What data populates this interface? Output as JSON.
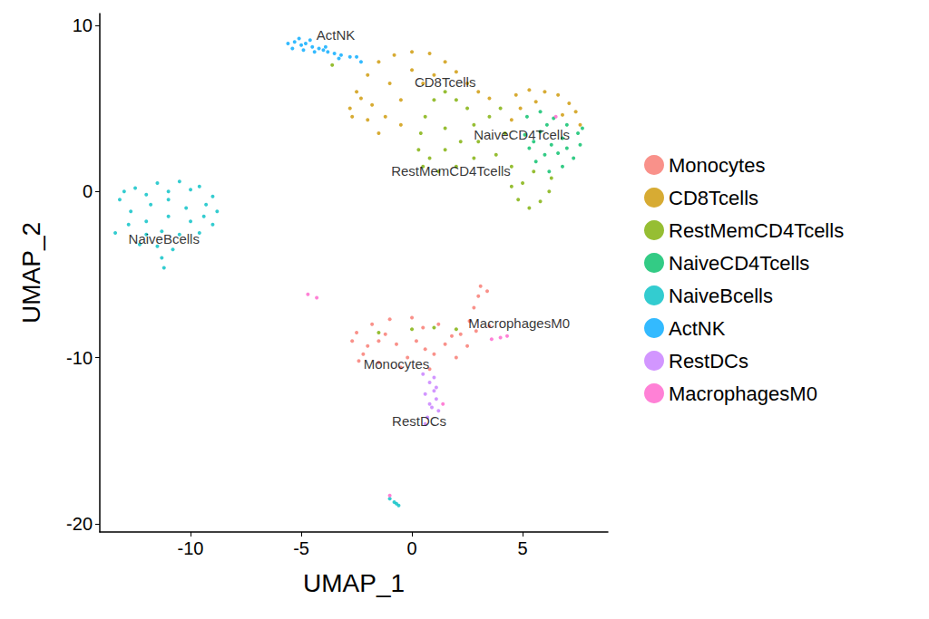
{
  "chart_data": {
    "type": "scatter",
    "x_label": "UMAP_1",
    "y_label": "UMAP_2",
    "xlim": [
      -14.1,
      8.85
    ],
    "ylim": [
      -20.5,
      10.7
    ],
    "xticks": [
      -10,
      -5,
      0,
      5
    ],
    "yticks": [
      -20,
      -10,
      0,
      10
    ],
    "grid": false,
    "legend": "right",
    "marker": "circle",
    "series": [
      {
        "name": "Monocytes",
        "color": "#F8766D",
        "values": [
          [
            -2.7,
            -9
          ],
          [
            -2.5,
            -8.5
          ],
          [
            -2.2,
            -9.8
          ],
          [
            -1.8,
            -8
          ],
          [
            -1.5,
            -10.3
          ],
          [
            -1,
            -7.7
          ],
          [
            -0.5,
            -10.6
          ],
          [
            0,
            -7.6
          ],
          [
            0.2,
            -9
          ],
          [
            -0.7,
            -9.2
          ],
          [
            -1.5,
            -9
          ],
          [
            0.8,
            -10.7
          ],
          [
            1.2,
            -8
          ],
          [
            1.5,
            -9.2
          ],
          [
            2,
            -10
          ],
          [
            2.2,
            -8.6
          ],
          [
            2.6,
            -7.8
          ],
          [
            2.8,
            -7
          ],
          [
            3,
            -6.3
          ],
          [
            3.1,
            -5.7
          ],
          [
            3.4,
            -6
          ],
          [
            2.5,
            -9.3
          ],
          [
            1,
            -9.8
          ],
          [
            -2.4,
            -10.2
          ],
          [
            0.5,
            -8.2
          ],
          [
            3.5,
            -8.1
          ],
          [
            -0.2,
            -10
          ],
          [
            -1.2,
            -8.6
          ],
          [
            0.6,
            -9.5
          ],
          [
            1.8,
            -8.7
          ],
          [
            -2,
            -9.3
          ],
          [
            2.9,
            -8.4
          ]
        ]
      },
      {
        "name": "CD8Tcells",
        "color": "#CD9600",
        "values": [
          [
            -2.8,
            5
          ],
          [
            -2.5,
            6
          ],
          [
            -2,
            7
          ],
          [
            -1.5,
            7.8
          ],
          [
            -0.8,
            8.2
          ],
          [
            0,
            8.4
          ],
          [
            0.8,
            8.3
          ],
          [
            1.5,
            7.8
          ],
          [
            2,
            7.2
          ],
          [
            2.5,
            6.5
          ],
          [
            3,
            6
          ],
          [
            3.5,
            5.6
          ],
          [
            -2.7,
            4.5
          ],
          [
            -2,
            4.3
          ],
          [
            -1.2,
            4.5
          ],
          [
            -0.5,
            5.5
          ],
          [
            0.5,
            6.5
          ],
          [
            -1,
            6.5
          ],
          [
            0,
            7.3
          ],
          [
            1,
            7
          ],
          [
            -1.8,
            5.2
          ],
          [
            -2.3,
            5.6
          ],
          [
            4.7,
            5.8
          ],
          [
            5.3,
            6.1
          ],
          [
            6,
            6
          ],
          [
            6.6,
            5.8
          ],
          [
            7.1,
            5.3
          ],
          [
            7.4,
            4.8
          ],
          [
            4.9,
            5
          ],
          [
            5.6,
            5.4
          ],
          [
            6.8,
            4.6
          ],
          [
            7.6,
            4
          ],
          [
            4.5,
            4.3
          ],
          [
            -1.5,
            3.5
          ],
          [
            -0.5,
            4
          ]
        ]
      },
      {
        "name": "RestMemCD4Tcells",
        "color": "#7CAE00",
        "values": [
          [
            0.5,
            1.5
          ],
          [
            0.3,
            2.5
          ],
          [
            0.4,
            3.5
          ],
          [
            0.6,
            4.5
          ],
          [
            1,
            5.5
          ],
          [
            1.5,
            6
          ],
          [
            2,
            5.5
          ],
          [
            2.5,
            5
          ],
          [
            2.8,
            4
          ],
          [
            3,
            3
          ],
          [
            2.8,
            2
          ],
          [
            2,
            1.5
          ],
          [
            1.2,
            1.2
          ],
          [
            1.5,
            2.5
          ],
          [
            1.5,
            3.8
          ],
          [
            2.2,
            3
          ],
          [
            3.5,
            4.5
          ],
          [
            4,
            5
          ],
          [
            4.2,
            3.5
          ],
          [
            3.8,
            2.2
          ],
          [
            4.5,
            1.5
          ],
          [
            5,
            0.5
          ],
          [
            4.8,
            -0.5
          ],
          [
            5.3,
            -1
          ],
          [
            5.8,
            -0.6
          ],
          [
            6.2,
            0
          ],
          [
            6.3,
            0.8
          ],
          [
            5.5,
            1.2
          ],
          [
            4.5,
            0.3
          ],
          [
            0.8,
            2
          ],
          [
            0,
            -8.3
          ],
          [
            1,
            -8.2
          ],
          [
            -1.5,
            -8.5
          ],
          [
            2,
            -8.3
          ],
          [
            -3.6,
            7.6
          ]
        ]
      },
      {
        "name": "NaiveCD4Tcells",
        "color": "#00BE67",
        "values": [
          [
            5.2,
            4.5
          ],
          [
            5.8,
            4.8
          ],
          [
            6.4,
            4.4
          ],
          [
            7,
            4
          ],
          [
            7.5,
            3.5
          ],
          [
            7.6,
            2.8
          ],
          [
            7.3,
            2
          ],
          [
            6.8,
            1.5
          ],
          [
            6.2,
            1.2
          ],
          [
            5.6,
            1.8
          ],
          [
            5.3,
            2.6
          ],
          [
            5.1,
            3.4
          ],
          [
            5.8,
            3.6
          ],
          [
            6.3,
            2.8
          ],
          [
            6.8,
            3.2
          ],
          [
            6,
            2.2
          ],
          [
            6.6,
            2.3
          ],
          [
            5.5,
            3
          ],
          [
            7,
            2.6
          ],
          [
            6.1,
            4
          ],
          [
            7.7,
            3.8
          ]
        ]
      },
      {
        "name": "NaiveBcells",
        "color": "#00BFC4",
        "values": [
          [
            -12.5,
            0.2
          ],
          [
            -11.5,
            0.5
          ],
          [
            -10.5,
            0.6
          ],
          [
            -9.6,
            0.3
          ],
          [
            -9,
            -0.3
          ],
          [
            -8.8,
            -1.2
          ],
          [
            -9,
            -2
          ],
          [
            -9.6,
            -2.5
          ],
          [
            -10.5,
            -2.6
          ],
          [
            -11.3,
            -2.4
          ],
          [
            -12,
            -1.8
          ],
          [
            -12.7,
            -1.2
          ],
          [
            -13.2,
            -0.5
          ],
          [
            -13,
            0
          ],
          [
            -12,
            -0.2
          ],
          [
            -11,
            -0.5
          ],
          [
            -10.2,
            -1
          ],
          [
            -11,
            -1.5
          ],
          [
            -12,
            -2.6
          ],
          [
            -11.5,
            -3.3
          ],
          [
            -11.3,
            -4
          ],
          [
            -11.2,
            -4.6
          ],
          [
            -10.8,
            -3.5
          ],
          [
            -12.3,
            -3.2
          ],
          [
            -13.4,
            -2.5
          ],
          [
            -9.4,
            -1.5
          ],
          [
            -10,
            0.1
          ],
          [
            -11,
            0
          ],
          [
            -12.8,
            -2
          ],
          [
            -10,
            -1.8
          ],
          [
            -11.8,
            -0.8
          ],
          [
            -9.3,
            -0.8
          ],
          [
            -0.8,
            -18.7
          ],
          [
            -0.6,
            -18.9
          ],
          [
            -1,
            -18.5
          ],
          [
            -0.7,
            -18.8
          ]
        ]
      },
      {
        "name": "ActNK",
        "color": "#00A9FF",
        "values": [
          [
            -5.6,
            8.9
          ],
          [
            -5.3,
            9
          ],
          [
            -5,
            8.8
          ],
          [
            -4.8,
            8.9
          ],
          [
            -4.5,
            8.7
          ],
          [
            -4.2,
            8.6
          ],
          [
            -4,
            8.5
          ],
          [
            -3.8,
            8.4
          ],
          [
            -3.5,
            8.3
          ],
          [
            -3.2,
            8.2
          ],
          [
            -2.8,
            8.1
          ],
          [
            -2.5,
            8.1
          ],
          [
            -5.4,
            8.6
          ],
          [
            -4.9,
            8.5
          ],
          [
            -4.4,
            8.4
          ],
          [
            -4.6,
            9.1
          ],
          [
            -3.9,
            8.7
          ],
          [
            -3.3,
            8
          ],
          [
            -5.1,
            9.2
          ],
          [
            -2.3,
            7.8
          ]
        ]
      },
      {
        "name": "RestDCs",
        "color": "#C77CFF",
        "values": [
          [
            0.5,
            -11
          ],
          [
            0.8,
            -11.5
          ],
          [
            1,
            -12
          ],
          [
            1.1,
            -12.5
          ],
          [
            0.9,
            -13
          ],
          [
            1.2,
            -13.2
          ],
          [
            0.7,
            -13.6
          ],
          [
            0.6,
            -14
          ],
          [
            1,
            -11.2
          ],
          [
            0.6,
            -12.2
          ],
          [
            1.1,
            -11.8
          ],
          [
            0.8,
            -12.8
          ]
        ]
      },
      {
        "name": "MacrophagesM0",
        "color": "#FF61CC",
        "values": [
          [
            4,
            -8.8
          ],
          [
            4.3,
            -8.7
          ],
          [
            3.6,
            -8.9
          ],
          [
            -4.7,
            -6.2
          ],
          [
            -4.3,
            -6.4
          ],
          [
            -1,
            -18.3
          ],
          [
            6.5,
            4.5
          ],
          [
            1.4,
            -12.8
          ]
        ]
      }
    ],
    "annotations": [
      {
        "text": "ActNK",
        "x": -3.44,
        "y": 9.42
      },
      {
        "text": "CD8Tcells",
        "x": 1.5,
        "y": 6.6
      },
      {
        "text": "NaiveCD4Tcells",
        "x": 4.96,
        "y": 3.43
      },
      {
        "text": "RestMemCD4Tcells",
        "x": 1.76,
        "y": 1.25
      },
      {
        "text": "NaiveBcells",
        "x": -11.2,
        "y": -2.83
      },
      {
        "text": "MacrophagesM0",
        "x": 4.84,
        "y": -7.95
      },
      {
        "text": "Monocytes",
        "x": -0.7,
        "y": -10.4
      },
      {
        "text": "RestDCs",
        "x": 0.33,
        "y": -13.8
      }
    ]
  }
}
